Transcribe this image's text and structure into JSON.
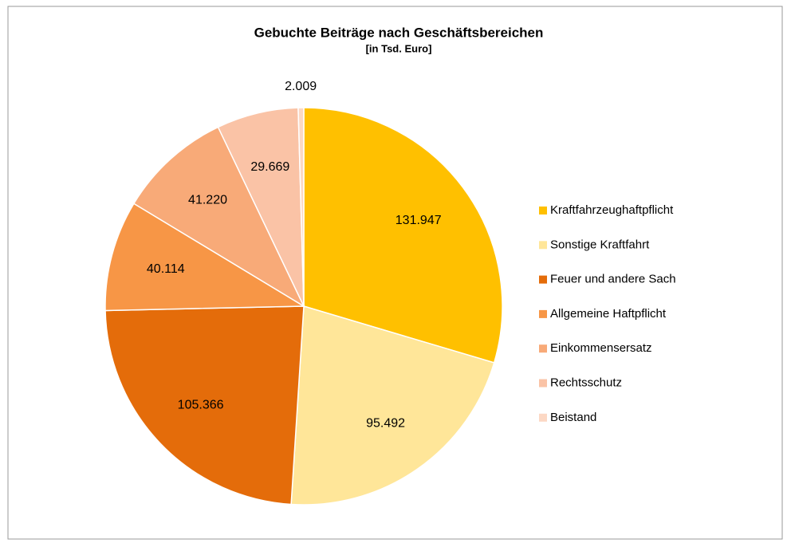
{
  "chart_data": {
    "type": "pie",
    "title": "Gebuchte Beiträge nach Geschäftsbereichen",
    "subtitle": "[in Tsd. Euro]",
    "categories": [
      "Kraftfahrzeughaftpflicht",
      "Sonstige Kraftfahrt",
      "Feuer und andere Sach",
      "Allgemeine Haftpflicht",
      "Einkommensersatz",
      "Rechtsschutz",
      "Beistand"
    ],
    "values": [
      131947,
      95492,
      105366,
      40114,
      41220,
      29669,
      2009
    ],
    "value_labels": [
      "131.947",
      "95.492",
      "105.366",
      "40.114",
      "41.220",
      "29.669",
      "2.009"
    ],
    "colors": [
      "#FFC000",
      "#FFE699",
      "#E46C0A",
      "#F79646",
      "#F8AA78",
      "#FAC3A6",
      "#FCD8C4"
    ],
    "legend": "right"
  }
}
